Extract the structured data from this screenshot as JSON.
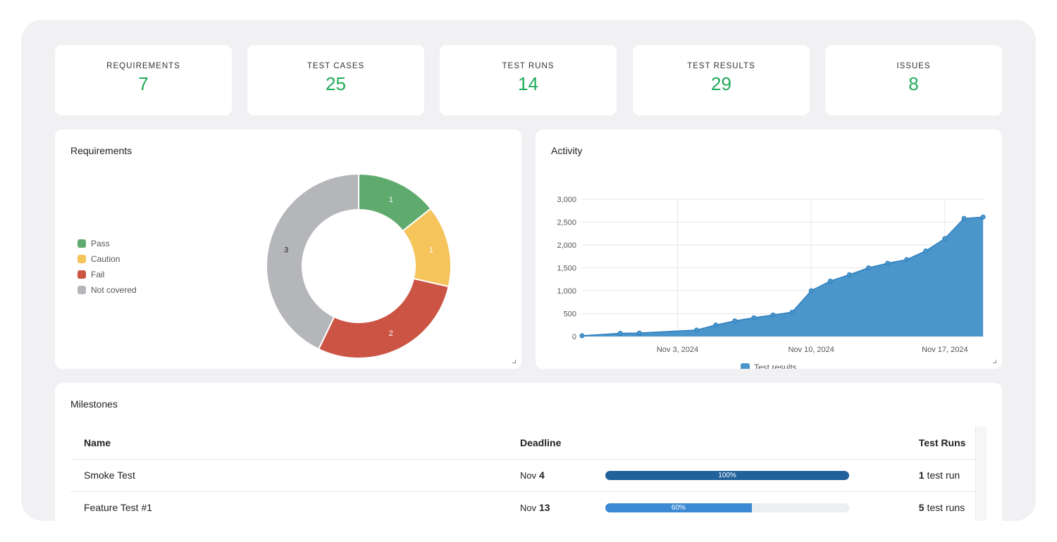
{
  "stats": [
    {
      "label": "REQUIREMENTS",
      "value": "7"
    },
    {
      "label": "TEST CASES",
      "value": "25"
    },
    {
      "label": "TEST RUNS",
      "value": "14"
    },
    {
      "label": "TEST RESULTS",
      "value": "29"
    },
    {
      "label": "ISSUES",
      "value": "8"
    }
  ],
  "requirements": {
    "title": "Requirements",
    "legend": [
      {
        "label": "Pass",
        "color": "#5fab6e"
      },
      {
        "label": "Caution",
        "color": "#f5c55c"
      },
      {
        "label": "Fail",
        "color": "#cc5444"
      },
      {
        "label": "Not covered",
        "color": "#b5b6ba"
      }
    ],
    "values": [
      1,
      1,
      2,
      3
    ]
  },
  "activity": {
    "title": "Activity"
  },
  "chart_data": {
    "type": "area",
    "title": "",
    "legend": [
      "Test results"
    ],
    "color": "#4a96cb",
    "ylim": [
      0,
      3000
    ],
    "yticks": [
      "0",
      "500",
      "1,000",
      "1,500",
      "2,000",
      "2,500",
      "3,000"
    ],
    "xticks": [
      {
        "date": "2024-11-03",
        "label": "Nov 3, 2024"
      },
      {
        "date": "2024-11-10",
        "label": "Nov 10, 2024"
      },
      {
        "date": "2024-11-17",
        "label": "Nov 17, 2024"
      }
    ],
    "x": [
      "2024-10-29",
      "2024-10-31",
      "2024-11-01",
      "2024-11-04",
      "2024-11-05",
      "2024-11-06",
      "2024-11-07",
      "2024-11-08",
      "2024-11-09",
      "2024-11-10",
      "2024-11-11",
      "2024-11-12",
      "2024-11-13",
      "2024-11-14",
      "2024-11-15",
      "2024-11-16",
      "2024-11-17",
      "2024-11-18",
      "2024-11-19"
    ],
    "y": [
      15,
      70,
      75,
      140,
      250,
      340,
      410,
      470,
      530,
      1000,
      1210,
      1350,
      1500,
      1600,
      1680,
      1870,
      2140,
      2580,
      2610
    ],
    "grid": true,
    "legend_position": "bottom"
  },
  "milestones": {
    "title": "Milestones",
    "headers": [
      "Name",
      "Deadline",
      "Test Runs"
    ],
    "rows": [
      {
        "name": "Smoke Test",
        "month": "Nov",
        "day": "4",
        "progress": 100,
        "progress_label": "100%",
        "color": "#22629b",
        "runs": "1",
        "runs_label": "test run"
      },
      {
        "name": "Feature Test #1",
        "month": "Nov",
        "day": "13",
        "progress": 60,
        "progress_label": "60%",
        "color": "#3b8ad3",
        "runs": "5",
        "runs_label": "test runs"
      }
    ]
  }
}
